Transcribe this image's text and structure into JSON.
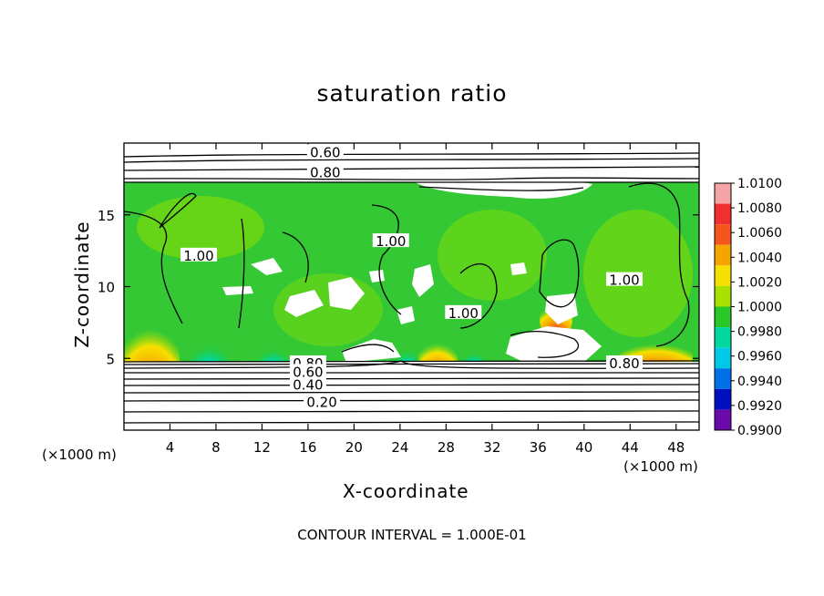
{
  "chart_data": {
    "type": "heatmap",
    "title": "saturation ratio",
    "xlabel": "X-coordinate",
    "ylabel": "Z-coordinate",
    "x_unit_label": "(×1000 m)",
    "z_unit_label": "(×1000 m)",
    "xlim": [
      0,
      50
    ],
    "ylim": [
      0,
      20
    ],
    "x_ticks": [
      4,
      8,
      12,
      16,
      20,
      24,
      28,
      32,
      36,
      40,
      44,
      48
    ],
    "y_ticks": [
      5,
      10,
      15
    ],
    "colorbar": {
      "ticks": [
        "1.0100",
        "1.0080",
        "1.0060",
        "1.0040",
        "1.0020",
        "1.0000",
        "0.9980",
        "0.9960",
        "0.9940",
        "0.9920",
        "0.9900"
      ],
      "colors": [
        "#f4a4a4",
        "#f03030",
        "#f4561b",
        "#f5a400",
        "#f6e000",
        "#a8e000",
        "#28c828",
        "#00d8a0",
        "#00c8e8",
        "#0070e8",
        "#0010c0",
        "#6a0aa8"
      ]
    },
    "contour_labels": [
      {
        "text": "0.60",
        "x": 17.5,
        "z": 19.4
      },
      {
        "text": "0.80",
        "x": 17.5,
        "z": 18.0
      },
      {
        "text": "1.00",
        "x": 6.5,
        "z": 12.2
      },
      {
        "text": "1.00",
        "x": 23.2,
        "z": 13.2
      },
      {
        "text": "1.00",
        "x": 29.5,
        "z": 8.2
      },
      {
        "text": "1.00",
        "x": 43.5,
        "z": 10.5
      },
      {
        "text": "0.80",
        "x": 16.0,
        "z": 4.7
      },
      {
        "text": "0.60",
        "x": 16.0,
        "z": 4.1
      },
      {
        "text": "0.40",
        "x": 16.0,
        "z": 3.2
      },
      {
        "text": "0.20",
        "x": 17.2,
        "z": 2.0
      },
      {
        "text": "0.80",
        "x": 43.5,
        "z": 4.7
      }
    ],
    "footer": "CONTOUR INTERVAL = 1.000E-01"
  }
}
